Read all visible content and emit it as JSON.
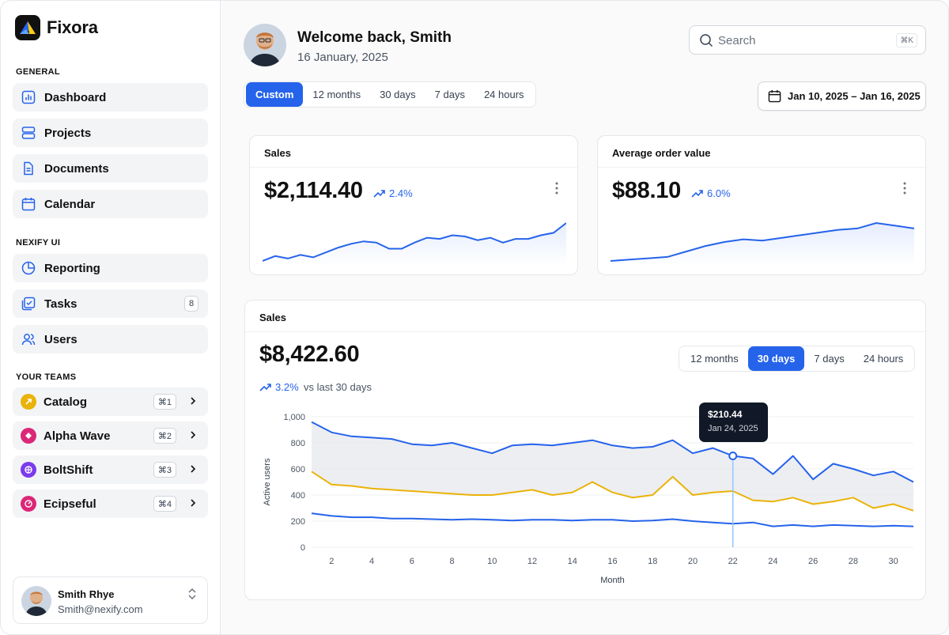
{
  "brand": {
    "name": "Fixora"
  },
  "sidebar": {
    "general_label": "GENERAL",
    "general_items": [
      {
        "label": "Dashboard",
        "icon": "chart-icon"
      },
      {
        "label": "Projects",
        "icon": "stack-icon"
      },
      {
        "label": "Documents",
        "icon": "document-icon"
      },
      {
        "label": "Calendar",
        "icon": "calendar-icon"
      }
    ],
    "nexify_label": "NEXIFY UI",
    "nexify_items": [
      {
        "label": "Reporting",
        "icon": "pie-icon"
      },
      {
        "label": "Tasks",
        "icon": "tasks-icon",
        "badge": "8"
      },
      {
        "label": "Users",
        "icon": "users-icon"
      }
    ],
    "teams_label": "YOUR TEAMS",
    "teams": [
      {
        "label": "Catalog",
        "shortcut": "⌘1",
        "color": "#eab308"
      },
      {
        "label": "Alpha Wave",
        "shortcut": "⌘2",
        "color": "#db2777"
      },
      {
        "label": "BoltShift",
        "shortcut": "⌘3",
        "color": "#7c3aed"
      },
      {
        "label": "Ecipseful",
        "shortcut": "⌘4",
        "color": "#db2777"
      }
    ],
    "user": {
      "name": "Smith Rhye",
      "email": "Smith@nexify.com"
    }
  },
  "header": {
    "welcome": "Welcome back, Smith",
    "date": "16 January, 2025",
    "search_placeholder": "Search",
    "search_shortcut": "⌘K"
  },
  "range_tabs": {
    "options": [
      "Custom",
      "12 months",
      "30 days",
      "7 days",
      "24 hours"
    ],
    "active": "Custom"
  },
  "date_range": "Jan 10, 2025 – Jan 16, 2025",
  "kpi": [
    {
      "title": "Sales",
      "value": "$2,114.40",
      "delta": "2.4%"
    },
    {
      "title": "Average order value",
      "value": "$88.10",
      "delta": "6.0%"
    }
  ],
  "main_sales": {
    "title": "Sales",
    "value": "$8,422.60",
    "delta": "3.2%",
    "delta_note": "vs last 30 days",
    "tabs": [
      "12 months",
      "30 days",
      "7 days",
      "24 hours"
    ],
    "active_tab": "30 days",
    "tooltip": {
      "value": "$210.44",
      "date": "Jan 24, 2025"
    }
  },
  "colors": {
    "accent": "#2563eb",
    "secondary": "#eab308"
  },
  "chart_data": {
    "type": "line",
    "title": "",
    "xlabel": "Month",
    "ylabel": "Active users",
    "ylim": [
      0,
      1000
    ],
    "xlim": [
      1,
      31
    ],
    "y_ticks": [
      "0",
      "200",
      "400",
      "600",
      "800",
      "1,000"
    ],
    "x_ticks": [
      "2",
      "4",
      "6",
      "8",
      "10",
      "12",
      "14",
      "16",
      "18",
      "20",
      "22",
      "24",
      "26",
      "28",
      "30"
    ],
    "x": [
      1,
      2,
      3,
      4,
      5,
      6,
      7,
      8,
      9,
      10,
      11,
      12,
      13,
      14,
      15,
      16,
      17,
      18,
      19,
      20,
      21,
      22,
      23,
      24,
      25,
      26,
      27,
      28,
      29,
      30,
      31
    ],
    "series": [
      {
        "values": [
          960,
          880,
          850,
          840,
          830,
          790,
          780,
          800,
          760,
          720,
          780,
          790,
          780,
          800,
          820,
          780,
          760,
          770,
          820,
          720,
          760,
          700,
          680,
          560,
          700,
          520,
          640,
          600,
          550,
          580,
          500
        ],
        "color": "#2563eb"
      },
      {
        "values": [
          580,
          480,
          470,
          450,
          440,
          430,
          420,
          410,
          400,
          400,
          420,
          440,
          400,
          420,
          500,
          420,
          380,
          400,
          540,
          400,
          420,
          430,
          360,
          350,
          380,
          330,
          350,
          380,
          300,
          330,
          280
        ],
        "color": "#eab308"
      },
      {
        "values": [
          260,
          240,
          230,
          230,
          220,
          220,
          215,
          210,
          215,
          210,
          205,
          210,
          210,
          205,
          210,
          210,
          200,
          205,
          215,
          200,
          190,
          180,
          190,
          160,
          170,
          160,
          170,
          165,
          160,
          165,
          160
        ],
        "color": "#2563eb"
      }
    ],
    "highlight": {
      "x": 22,
      "value": 210.44,
      "label": "$210.44",
      "date": "Jan 24, 2025"
    }
  },
  "sparklines": [
    {
      "values": [
        10,
        18,
        14,
        20,
        16,
        24,
        32,
        38,
        42,
        40,
        30,
        30,
        40,
        48,
        46,
        52,
        50,
        44,
        48,
        40,
        46,
        46,
        52,
        56,
        72
      ]
    },
    {
      "values": [
        10,
        12,
        14,
        16,
        24,
        32,
        38,
        42,
        40,
        44,
        48,
        52,
        56,
        58,
        66,
        62,
        58
      ]
    }
  ]
}
